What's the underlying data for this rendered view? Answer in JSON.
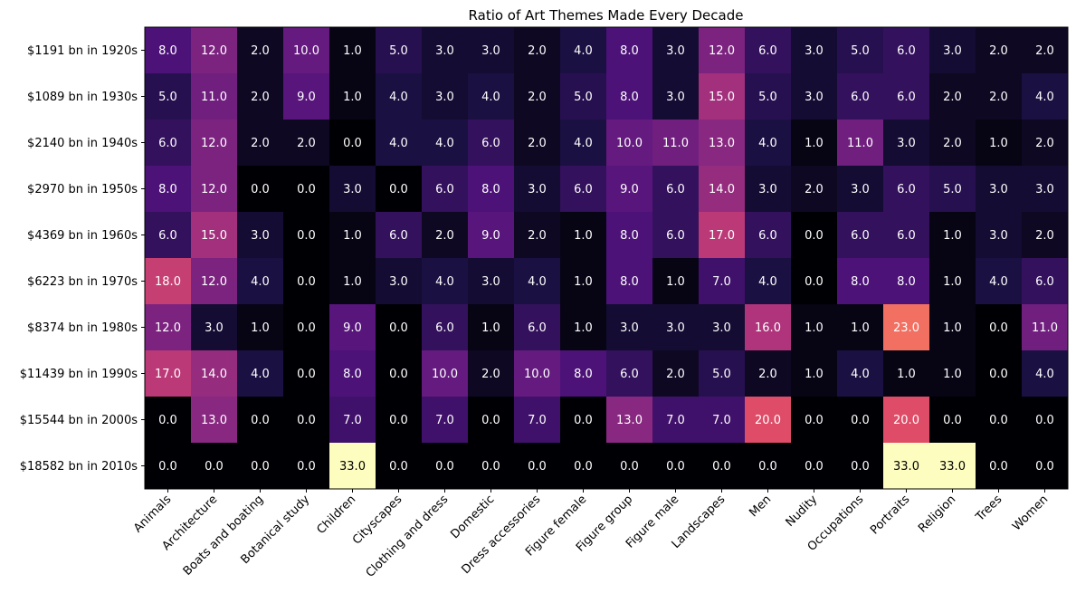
{
  "chart_data": {
    "type": "heatmap",
    "title": "Ratio of Art Themes Made Every Decade",
    "xlabel": "",
    "ylabel": "",
    "colormap": "magma",
    "value_range": [
      0,
      33
    ],
    "value_format": "one-decimal",
    "x_categories": [
      "Animals",
      "Architecture",
      "Boats and boating",
      "Botanical study",
      "Children",
      "Cityscapes",
      "Clothing and dress",
      "Domestic",
      "Dress accessories",
      "Figure female",
      "Figure group",
      "Figure male",
      "Landscapes",
      "Men",
      "Nudity",
      "Occupations",
      "Portraits",
      "Religion",
      "Trees",
      "Women"
    ],
    "y_categories": [
      "$1191 bn in 1920s",
      "$1089 bn in 1930s",
      "$2140 bn in 1940s",
      "$2970 bn in 1950s",
      "$4369 bn in 1960s",
      "$6223 bn in 1970s",
      "$8374 bn in 1980s",
      "$11439 bn in 1990s",
      "$15544 bn in 2000s",
      "$18582 bn in 2010s"
    ],
    "values": [
      [
        8,
        12,
        2,
        10,
        1,
        5,
        3,
        3,
        2,
        4,
        8,
        3,
        12,
        6,
        3,
        5,
        6,
        3,
        2,
        2
      ],
      [
        5,
        11,
        2,
        9,
        1,
        4,
        3,
        4,
        2,
        5,
        8,
        3,
        15,
        5,
        3,
        6,
        6,
        2,
        2,
        4
      ],
      [
        6,
        12,
        2,
        2,
        0,
        4,
        4,
        6,
        2,
        4,
        10,
        11,
        13,
        4,
        1,
        11,
        3,
        2,
        1,
        2
      ],
      [
        8,
        12,
        0,
        0,
        3,
        0,
        6,
        8,
        3,
        6,
        9,
        6,
        14,
        3,
        2,
        3,
        6,
        5,
        3,
        3
      ],
      [
        6,
        15,
        3,
        0,
        1,
        6,
        2,
        9,
        2,
        1,
        8,
        6,
        17,
        6,
        0,
        6,
        6,
        1,
        3,
        2
      ],
      [
        18,
        12,
        4,
        0,
        1,
        3,
        4,
        3,
        4,
        1,
        8,
        1,
        7,
        4,
        0,
        8,
        8,
        1,
        4,
        6
      ],
      [
        12,
        3,
        1,
        0,
        9,
        0,
        6,
        1,
        6,
        1,
        3,
        3,
        3,
        16,
        1,
        1,
        23,
        1,
        0,
        11
      ],
      [
        17,
        14,
        4,
        0,
        8,
        0,
        10,
        2,
        10,
        8,
        6,
        2,
        5,
        2,
        1,
        4,
        1,
        1,
        0,
        4
      ],
      [
        0,
        13,
        0,
        0,
        7,
        0,
        7,
        0,
        7,
        0,
        13,
        7,
        7,
        20,
        0,
        0,
        20,
        0,
        0,
        0
      ],
      [
        0,
        0,
        0,
        0,
        33,
        0,
        0,
        0,
        0,
        0,
        0,
        0,
        0,
        0,
        0,
        0,
        33,
        33,
        0,
        0
      ]
    ],
    "grid": false,
    "legend": "none"
  }
}
